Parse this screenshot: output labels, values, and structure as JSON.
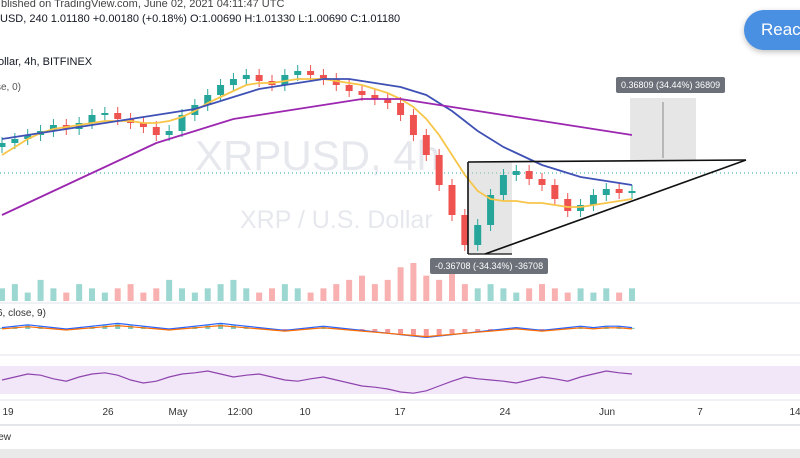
{
  "header": {
    "published": "ıblished on TradingView.com, June 02, 2021 04:11:47 UTC",
    "ohlc": "USD, 240  1.01180  +0.00180 (+0.18%)  O:1.00690  H:1.01330  L:1.00690  C:1.01180",
    "exchange": "ollar, 4h, BITFINEX",
    "ma_label": "se, 0)"
  },
  "read_button": "Reac",
  "watermark": {
    "symbol": "XRPUSD, 4h",
    "name": "XRP / U.S. Dollar"
  },
  "macd_label": "6, close, 9)",
  "review_label": "iew",
  "measurements": {
    "up": "0.36809 (34.44%) 36809",
    "down": "-0.36708 (-34.34%) -36708"
  },
  "colors": {
    "up": "#26a69a",
    "down": "#ef5350",
    "ma_yellow": "#f7c548",
    "ma_blue": "#3f51b5",
    "ma_purple": "#9c27b0",
    "rsi_band": "#e9d5f5",
    "rsi_line": "#8e44ad"
  },
  "chart_data": {
    "type": "candlestick",
    "x_ticks": [
      "19",
      "26",
      "May",
      "12:00",
      "10",
      "17",
      "24",
      "Jun",
      "7",
      "14"
    ],
    "price_series": [
      1.26,
      1.28,
      1.3,
      1.32,
      1.35,
      1.33,
      1.36,
      1.4,
      1.41,
      1.38,
      1.36,
      1.34,
      1.3,
      1.32,
      1.4,
      1.45,
      1.5,
      1.55,
      1.58,
      1.6,
      1.57,
      1.55,
      1.6,
      1.62,
      1.6,
      1.58,
      1.55,
      1.52,
      1.5,
      1.48,
      1.46,
      1.4,
      1.3,
      1.2,
      1.05,
      0.9,
      0.75,
      0.85,
      1.0,
      1.1,
      1.12,
      1.08,
      1.05,
      0.98,
      0.92,
      0.95,
      1.0,
      1.03,
      1.01,
      1.02
    ],
    "series": [
      {
        "name": "ma_fast",
        "values": [
          1.2,
          1.24,
          1.28,
          1.31,
          1.33,
          1.34,
          1.35,
          1.36,
          1.37,
          1.37,
          1.37,
          1.36,
          1.36,
          1.37,
          1.39,
          1.42,
          1.46,
          1.49,
          1.52,
          1.55,
          1.56,
          1.56,
          1.57,
          1.58,
          1.58,
          1.58,
          1.57,
          1.56,
          1.55,
          1.53,
          1.51,
          1.48,
          1.44,
          1.38,
          1.3,
          1.2,
          1.1,
          1.02,
          0.98,
          0.97,
          0.97,
          0.96,
          0.96,
          0.95,
          0.94,
          0.94,
          0.95,
          0.96,
          0.97,
          0.98
        ]
      },
      {
        "name": "ma_mid",
        "values": [
          1.28,
          1.29,
          1.3,
          1.31,
          1.32,
          1.33,
          1.34,
          1.35,
          1.36,
          1.37,
          1.38,
          1.39,
          1.4,
          1.41,
          1.42,
          1.43,
          1.45,
          1.47,
          1.49,
          1.51,
          1.53,
          1.54,
          1.55,
          1.56,
          1.57,
          1.58,
          1.58,
          1.58,
          1.57,
          1.56,
          1.55,
          1.54,
          1.52,
          1.5,
          1.46,
          1.42,
          1.37,
          1.32,
          1.28,
          1.24,
          1.21,
          1.18,
          1.15,
          1.13,
          1.11,
          1.09,
          1.08,
          1.07,
          1.06,
          1.05
        ]
      },
      {
        "name": "ma_slow",
        "values": [
          0.9,
          0.93,
          0.96,
          0.99,
          1.02,
          1.05,
          1.08,
          1.11,
          1.14,
          1.17,
          1.2,
          1.23,
          1.26,
          1.28,
          1.3,
          1.32,
          1.34,
          1.36,
          1.38,
          1.39,
          1.4,
          1.41,
          1.42,
          1.43,
          1.44,
          1.45,
          1.46,
          1.47,
          1.48,
          1.48,
          1.48,
          1.48,
          1.47,
          1.46,
          1.45,
          1.44,
          1.43,
          1.42,
          1.41,
          1.4,
          1.39,
          1.38,
          1.37,
          1.36,
          1.35,
          1.34,
          1.33,
          1.32,
          1.31,
          1.3
        ]
      }
    ],
    "triangle": {
      "apex_value": 1.05,
      "upper_value": 1.05,
      "lower_start_value": 0.75
    },
    "volume": [
      3,
      4,
      2,
      5,
      3,
      2,
      4,
      3,
      2,
      3,
      4,
      2,
      3,
      5,
      3,
      2,
      3,
      4,
      5,
      3,
      2,
      3,
      4,
      3,
      2,
      3,
      4,
      5,
      6,
      4,
      5,
      8,
      9,
      6,
      5,
      7,
      4,
      3,
      4,
      3,
      2,
      3,
      4,
      3,
      2,
      3,
      2,
      3,
      2,
      3
    ],
    "macd": [
      0.1,
      0.2,
      0.3,
      0.2,
      0.1,
      0.0,
      0.1,
      0.2,
      0.3,
      0.4,
      0.3,
      0.2,
      0.1,
      0.0,
      0.1,
      0.2,
      0.3,
      0.4,
      0.3,
      0.2,
      0.1,
      0.0,
      -0.1,
      0.0,
      0.1,
      0.2,
      0.1,
      0.0,
      -0.1,
      -0.2,
      -0.3,
      -0.4,
      -0.5,
      -0.6,
      -0.5,
      -0.4,
      -0.3,
      -0.2,
      -0.1,
      0.0,
      0.1,
      0.0,
      -0.1,
      0.0,
      0.1,
      0.2,
      0.1,
      0.2,
      0.2,
      0.1
    ],
    "rsi": [
      50,
      55,
      60,
      58,
      52,
      48,
      55,
      60,
      62,
      58,
      50,
      45,
      48,
      55,
      60,
      62,
      65,
      60,
      55,
      58,
      60,
      55,
      50,
      48,
      52,
      55,
      50,
      45,
      40,
      38,
      35,
      30,
      28,
      32,
      40,
      48,
      55,
      52,
      50,
      48,
      45,
      50,
      55,
      52,
      48,
      55,
      60,
      65,
      62,
      60
    ]
  }
}
